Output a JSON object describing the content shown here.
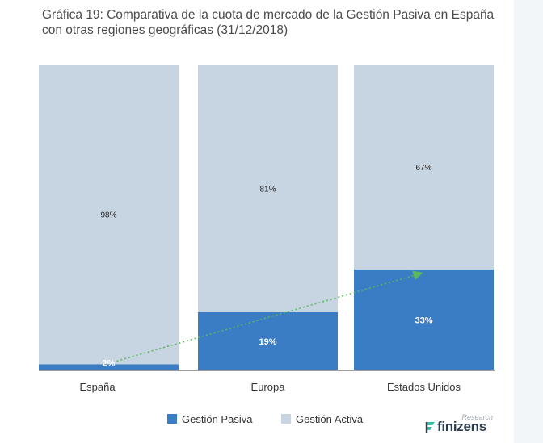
{
  "title": "Gráfica 19: Comparativa de la cuota de mercado de la Gestión Pasiva en España con otras regiones geográficas (31/12/2018)",
  "colors": {
    "pasiva": "#3a7dc4",
    "activa": "#c7d5e3",
    "trend": "#5cb85c",
    "axis": "#555555",
    "text": "#333333"
  },
  "chart_data": {
    "type": "bar",
    "stacked": true,
    "percent_stacked": true,
    "categories": [
      "España",
      "Europa",
      "Estados Unidos"
    ],
    "series": [
      {
        "name": "Gestión Pasiva",
        "values": [
          2,
          19,
          33
        ],
        "labels": [
          "2%",
          "19%",
          "33%"
        ]
      },
      {
        "name": "Gestión Activa",
        "values": [
          98,
          81,
          67
        ],
        "labels": [
          "98%",
          "81%",
          "67%"
        ]
      }
    ],
    "ylim": [
      0,
      100
    ],
    "grid": false,
    "legend_position": "bottom",
    "annotations": [
      {
        "type": "dotted-arrow",
        "from": {
          "category": "España",
          "value": 2
        },
        "to": {
          "category": "Estados Unidos",
          "value": 33
        }
      }
    ]
  },
  "logo": {
    "brand": "finizens",
    "tagline": "Research"
  }
}
